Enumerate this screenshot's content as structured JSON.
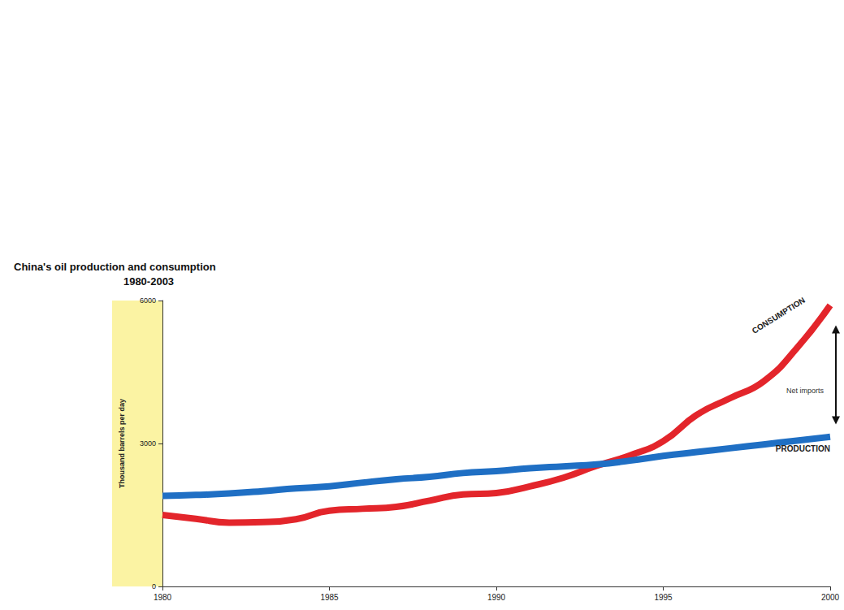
{
  "chart_data": {
    "type": "line",
    "title": "China's oil production and consumption",
    "subtitle": "1980-2003",
    "y_label": "Thousand barrels per day",
    "annotation": "Net imports",
    "xlim": [
      1980,
      2000
    ],
    "xticks": [
      1980,
      1985,
      1990,
      1995,
      2000
    ],
    "ylim": [
      0,
      6000
    ],
    "yticks": [
      0,
      3000,
      6000
    ],
    "grid": false,
    "legend": "none",
    "x": [
      1980,
      1981,
      1982,
      1983,
      1984,
      1985,
      1986,
      1987,
      1988,
      1989,
      1990,
      1991,
      1992,
      1993,
      1994,
      1995,
      1996,
      1997,
      1998,
      1999,
      2000
    ],
    "series": [
      {
        "name": "CONSUMPTION",
        "color": "#e3252b",
        "values": [
          1500,
          1420,
          1340,
          1350,
          1410,
          1590,
          1630,
          1670,
          1800,
          1930,
          1960,
          2100,
          2280,
          2530,
          2750,
          3050,
          3600,
          3950,
          4300,
          5000,
          5900
        ]
      },
      {
        "name": "PRODUCTION",
        "color": "#1f6fc4",
        "values": [
          1900,
          1920,
          1950,
          2000,
          2060,
          2100,
          2180,
          2250,
          2300,
          2380,
          2420,
          2480,
          2520,
          2560,
          2640,
          2740,
          2820,
          2900,
          2980,
          3060,
          3140
        ]
      }
    ]
  }
}
